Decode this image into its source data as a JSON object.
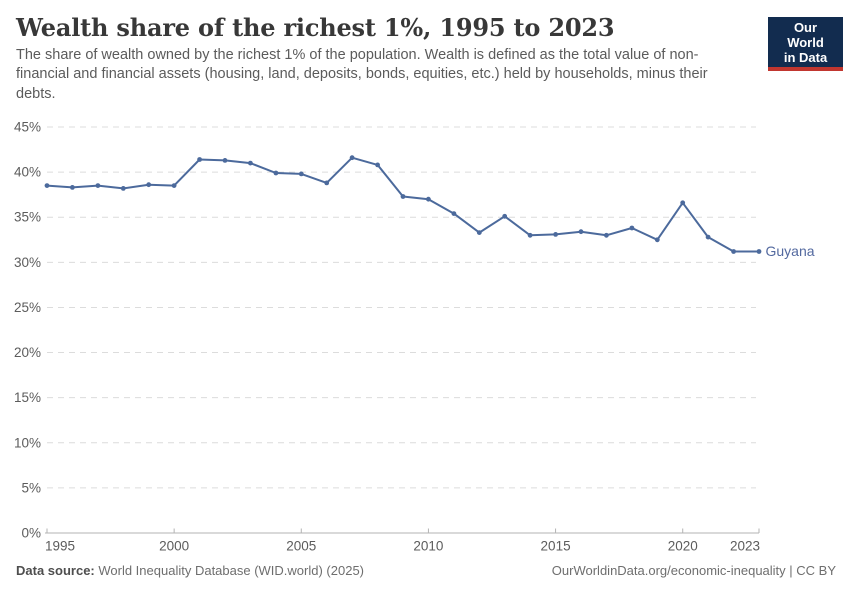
{
  "header": {
    "title": "Wealth share of the richest 1%, 1995 to 2023",
    "subtitle": "The share of wealth owned by the richest 1% of the population. Wealth is defined as the total value of non-financial and financial assets (housing, land, deposits, bonds, equities, etc.) held by households, minus their debts.",
    "logo": {
      "line1": "Our World",
      "line2": "in Data"
    }
  },
  "chart_data": {
    "type": "line",
    "title": "Wealth share of the richest 1%, 1995 to 2023",
    "xlabel": "",
    "ylabel": "",
    "xlim": [
      1995,
      2023
    ],
    "ylim": [
      0,
      45
    ],
    "grid": "horizontal-dashed",
    "legend_position": "end-of-line-label",
    "x": [
      1995,
      1996,
      1997,
      1998,
      1999,
      2000,
      2001,
      2002,
      2003,
      2004,
      2005,
      2006,
      2007,
      2008,
      2009,
      2010,
      2011,
      2012,
      2013,
      2014,
      2015,
      2016,
      2017,
      2018,
      2019,
      2020,
      2021,
      2022,
      2023
    ],
    "series": [
      {
        "name": "Guyana",
        "values": [
          38.5,
          38.3,
          38.5,
          38.2,
          38.6,
          38.5,
          41.4,
          41.3,
          41.0,
          39.9,
          39.8,
          38.8,
          41.6,
          40.8,
          37.3,
          37.0,
          35.4,
          33.3,
          35.1,
          33.0,
          33.1,
          33.4,
          33.0,
          33.8,
          32.5,
          36.6,
          32.8,
          31.2,
          31.2
        ]
      }
    ],
    "x_tick_labels": [
      "1995",
      "2000",
      "2005",
      "2010",
      "2015",
      "2020",
      "2023"
    ],
    "x_tick_years": [
      1995,
      2000,
      2005,
      2010,
      2015,
      2020,
      2023
    ],
    "y_tick_labels": [
      "0%",
      "5%",
      "10%",
      "15%",
      "20%",
      "25%",
      "30%",
      "35%",
      "40%",
      "45%"
    ],
    "y_tick_values": [
      0,
      5,
      10,
      15,
      20,
      25,
      30,
      35,
      40,
      45
    ]
  },
  "footer": {
    "source_label": "Data source:",
    "source_text": " World Inequality Database (WID.world) (2025)",
    "credit": "OurWorldinData.org/economic-inequality | CC BY"
  },
  "colors": {
    "line": "#4c6a9c",
    "series_label": "#53699f",
    "gridline": "#dcdcdc",
    "axis": "#b3b3b3",
    "tick_label": "#5c5c5c",
    "logo_navy": "#122c4f",
    "logo_red": "#c1362f"
  }
}
